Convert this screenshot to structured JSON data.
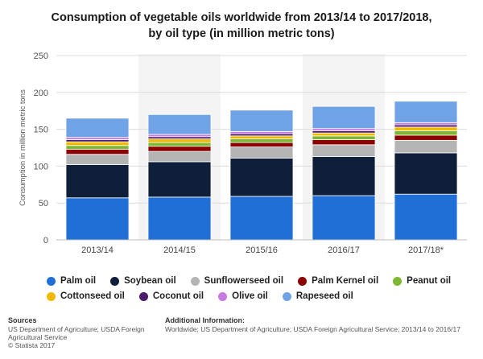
{
  "title_line1": "Consumption of vegetable oils worldwide from 2013/14 to 2017/2018,",
  "title_line2": "by oil type (in million metric tons)",
  "chart_data": {
    "type": "bar",
    "stacked": true,
    "categories": [
      "2013/14",
      "2014/15",
      "2015/16",
      "2016/17",
      "2017/18*"
    ],
    "ylabel": "Consumption in million metric tons",
    "xlabel": "",
    "ylim": [
      0,
      250
    ],
    "yticks": [
      0,
      50,
      100,
      150,
      200,
      250
    ],
    "grid": true,
    "legend": "bottom",
    "series": [
      {
        "name": "Palm oil",
        "color": "#1f6fd6",
        "values": [
          57,
          58,
          59,
          60,
          62
        ]
      },
      {
        "name": "Soybean oil",
        "color": "#0f1f3a",
        "values": [
          45,
          48,
          52,
          53,
          56
        ]
      },
      {
        "name": "Sunflowerseed oil",
        "color": "#b4b4b4",
        "values": [
          14,
          14,
          15,
          16,
          17
        ]
      },
      {
        "name": "Palm Kernel oil",
        "color": "#8b0000",
        "values": [
          7,
          7,
          6,
          7,
          7
        ]
      },
      {
        "name": "Peanut oil",
        "color": "#7cb82f",
        "values": [
          5,
          5,
          5,
          5,
          6
        ]
      },
      {
        "name": "Cottonseed oil",
        "color": "#f0b800",
        "values": [
          5,
          5,
          4,
          4,
          5
        ]
      },
      {
        "name": "Coconut oil",
        "color": "#4b1c6e",
        "values": [
          3,
          3,
          3,
          3,
          3
        ]
      },
      {
        "name": "Olive oil",
        "color": "#c77be0",
        "values": [
          3,
          3,
          3,
          3,
          3
        ]
      },
      {
        "name": "Rapeseed oil",
        "color": "#6fa3e6",
        "values": [
          26,
          27,
          29,
          30,
          29
        ]
      }
    ]
  },
  "sources": {
    "heading": "Sources",
    "lines": [
      "US Department of Agriculture; USDA Foreign",
      "Agricultural Service",
      "© Statista 2017"
    ]
  },
  "additional_info": {
    "heading": "Additional Information:",
    "lines": [
      "Worldwide; US Department of Agriculture; USDA Foreign Agricultural Service; 2013/14 to 2016/17"
    ]
  }
}
